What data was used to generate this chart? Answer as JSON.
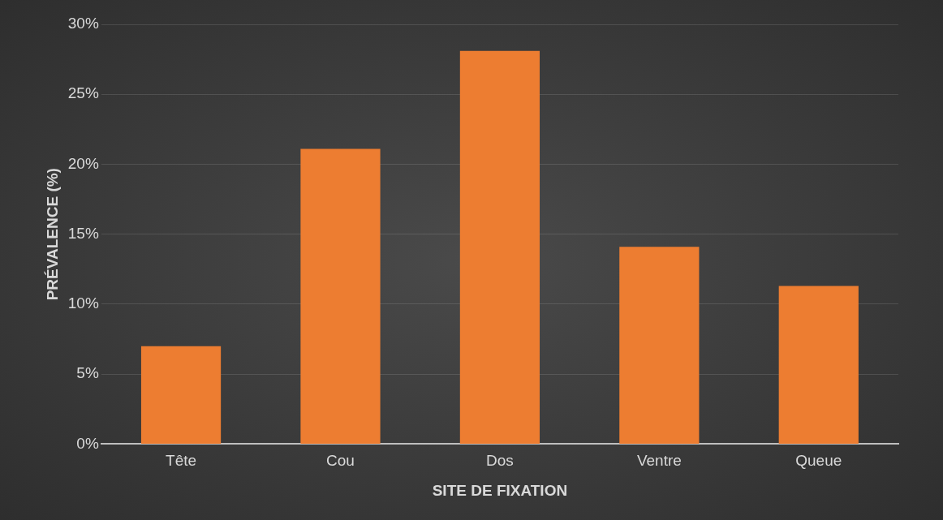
{
  "chart_data": {
    "type": "bar",
    "xlabel": "SITE DE FIXATION",
    "ylabel": "PRÉVALENCE (%)",
    "categories": [
      "Tête",
      "Cou",
      "Dos",
      "Ventre",
      "Queue"
    ],
    "values": [
      7.0,
      21.1,
      28.1,
      14.1,
      11.3
    ],
    "color": "#ed7d31",
    "ylim": [
      0,
      30
    ],
    "yticks": [
      {
        "value": 0,
        "label": "0%"
      },
      {
        "value": 5,
        "label": "5%"
      },
      {
        "value": 10,
        "label": "10%"
      },
      {
        "value": 15,
        "label": "15%"
      },
      {
        "value": 20,
        "label": "20%"
      },
      {
        "value": 25,
        "label": "25%"
      },
      {
        "value": 30,
        "label": "30%"
      }
    ],
    "grid": "y"
  }
}
